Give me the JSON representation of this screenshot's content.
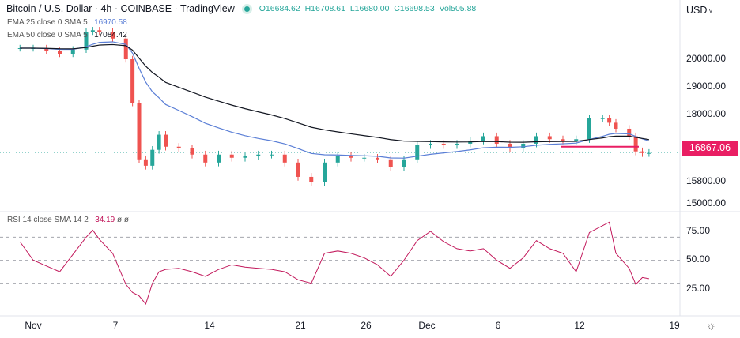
{
  "header": {
    "title": "Bitcoin / U.S. Dollar · 4h · COINBASE · TradingView",
    "open": "O16684.62",
    "high": "H16708.61",
    "low": "L16680.00",
    "close": "C16698.53",
    "volume": "Vol505.88",
    "currency": "USD"
  },
  "indicators": {
    "ema25_label": "EMA 25 close 0 SMA 5",
    "ema25_value": "16970.58",
    "ema50_label": "EMA 50 close 0 SMA 5",
    "ema50_value": "17084.42",
    "rsi_label": "RSI 14 close SMA 14 2",
    "rsi_value": "34.19",
    "rsi_extra1": "ø",
    "rsi_extra2": "ø"
  },
  "colors": {
    "up": "#26a69a",
    "down": "#ef5350",
    "ema25": "#5b7fd6",
    "ema50": "#131722",
    "rsi": "#c2185b",
    "last_price": "#e91e63"
  },
  "chart_data": {
    "type": "candlestick",
    "y_ticks": [
      "20000.00",
      "19000.00",
      "18000.00",
      "15800.00",
      "15000.00"
    ],
    "last_price": "16867.06",
    "support_level": 16900,
    "rsi_ticks": [
      "75.00",
      "50.00",
      "25.00"
    ],
    "rsi_levels": [
      70,
      50,
      30
    ],
    "x_ticks": [
      "Nov",
      "7",
      "14",
      "21",
      "26",
      "Dec",
      "6",
      "12",
      "19"
    ],
    "series": [
      [
        "Oct 31",
        20400,
        66
      ],
      [
        "Nov 1",
        20400,
        50
      ],
      [
        "Nov 2",
        20300,
        45
      ],
      [
        "Nov 3",
        20200,
        40
      ],
      [
        "Nov 4",
        20350,
        55
      ],
      [
        "Nov 5",
        21000,
        70
      ],
      [
        "Nov 5 12:00",
        21050,
        76
      ],
      [
        "Nov 6",
        21000,
        68
      ],
      [
        "Nov 7",
        20750,
        56
      ],
      [
        "Nov 8",
        20000,
        29
      ],
      [
        "Nov 8 12:00",
        18400,
        22
      ],
      [
        "Nov 9",
        16500,
        19
      ],
      [
        "Nov 9 12:00",
        16300,
        12
      ],
      [
        "Nov 10",
        16800,
        30
      ],
      [
        "Nov 10 12:00",
        17300,
        40
      ],
      [
        "Nov 11",
        16900,
        42
      ],
      [
        "Nov 12",
        16850,
        43
      ],
      [
        "Nov 13",
        16650,
        40
      ],
      [
        "Nov 14",
        16400,
        36
      ],
      [
        "Nov 15",
        16650,
        42
      ],
      [
        "Nov 16",
        16550,
        46
      ],
      [
        "Nov 17",
        16600,
        44
      ],
      [
        "Nov 18",
        16650,
        43
      ],
      [
        "Nov 19",
        16650,
        42
      ],
      [
        "Nov 20",
        16400,
        40
      ],
      [
        "Nov 21",
        15950,
        33
      ],
      [
        "Nov 22",
        15800,
        30
      ],
      [
        "Nov 23",
        16400,
        56
      ],
      [
        "Nov 24",
        16600,
        58
      ],
      [
        "Nov 25",
        16550,
        56
      ],
      [
        "Nov 26",
        16550,
        52
      ],
      [
        "Nov 27",
        16500,
        46
      ],
      [
        "Nov 28",
        16250,
        36
      ],
      [
        "Nov 29",
        16500,
        50
      ],
      [
        "Nov 30",
        16950,
        67
      ],
      [
        "Dec 1",
        17000,
        75
      ],
      [
        "Dec 2",
        16950,
        66
      ],
      [
        "Dec 3",
        17000,
        60
      ],
      [
        "Dec 4",
        17100,
        58
      ],
      [
        "Dec 5",
        17250,
        60
      ],
      [
        "Dec 6",
        17000,
        50
      ],
      [
        "Dec 7",
        16850,
        43
      ],
      [
        "Dec 8",
        17000,
        52
      ],
      [
        "Dec 9",
        17250,
        67
      ],
      [
        "Dec 10",
        17150,
        60
      ],
      [
        "Dec 11",
        17100,
        56
      ],
      [
        "Dec 12",
        17150,
        40
      ],
      [
        "Dec 13",
        17850,
        74
      ],
      [
        "Dec 14",
        17850,
        80
      ],
      [
        "Dec 14 12:00",
        17700,
        83
      ],
      [
        "Dec 15",
        17500,
        56
      ],
      [
        "Dec 16",
        17250,
        43
      ],
      [
        "Dec 16 12:00",
        16750,
        29
      ],
      [
        "Dec 17",
        16700,
        35
      ],
      [
        "Dec 17 12:00",
        16700,
        34
      ]
    ]
  }
}
